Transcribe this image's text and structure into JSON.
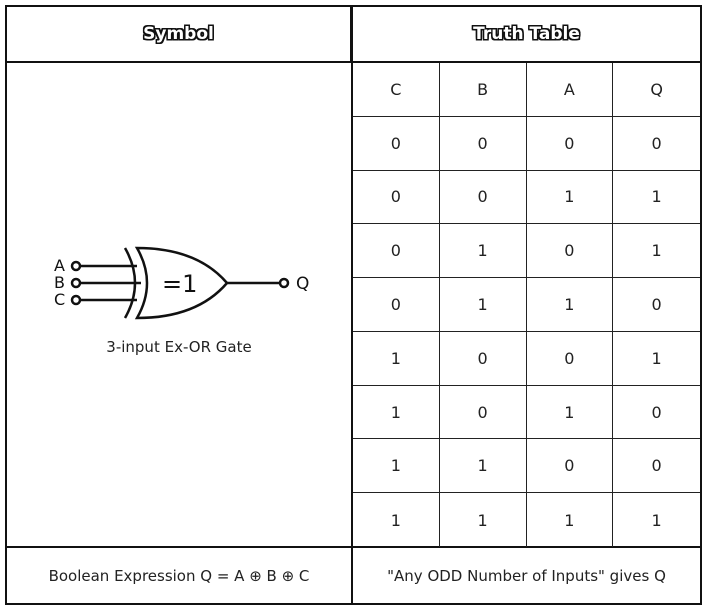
{
  "headers": {
    "symbol": "Symbol",
    "truth_table": "Truth Table"
  },
  "gate": {
    "inputs": [
      "A",
      "B",
      "C"
    ],
    "output": "Q",
    "body_label": "=1",
    "caption": "3-input Ex-OR Gate"
  },
  "truth_table": {
    "columns": [
      "C",
      "B",
      "A",
      "Q"
    ],
    "rows": [
      [
        "0",
        "0",
        "0",
        "0"
      ],
      [
        "0",
        "0",
        "1",
        "1"
      ],
      [
        "0",
        "1",
        "0",
        "1"
      ],
      [
        "0",
        "1",
        "1",
        "0"
      ],
      [
        "1",
        "0",
        "0",
        "1"
      ],
      [
        "1",
        "0",
        "1",
        "0"
      ],
      [
        "1",
        "1",
        "0",
        "0"
      ],
      [
        "1",
        "1",
        "1",
        "1"
      ]
    ]
  },
  "footer": {
    "expression": "Boolean Expression Q = A ⊕ B ⊕ C",
    "note": "\"Any ODD Number of Inputs\" gives Q"
  }
}
